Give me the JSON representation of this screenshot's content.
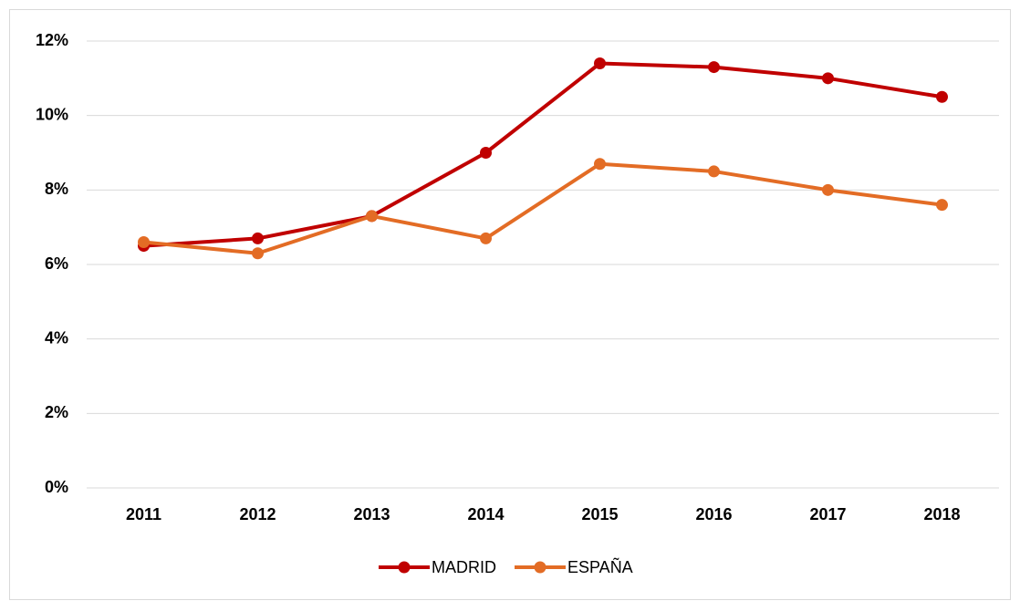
{
  "chart_data": {
    "type": "line",
    "categories": [
      "2011",
      "2012",
      "2013",
      "2014",
      "2015",
      "2016",
      "2017",
      "2018"
    ],
    "series": [
      {
        "name": "MADRID",
        "color": "#c00000",
        "values": [
          6.5,
          6.7,
          7.3,
          9.0,
          11.4,
          11.3,
          11.0,
          10.5
        ]
      },
      {
        "name": "ESPAÑA",
        "color": "#e36c25",
        "values": [
          6.6,
          6.3,
          7.3,
          6.7,
          8.7,
          8.5,
          8.0,
          7.6
        ]
      }
    ],
    "ylim": [
      0,
      12
    ],
    "yticks": [
      {
        "value": 0,
        "label": "0%"
      },
      {
        "value": 2,
        "label": "2%"
      },
      {
        "value": 4,
        "label": "4%"
      },
      {
        "value": 6,
        "label": "6%"
      },
      {
        "value": 8,
        "label": "8%"
      },
      {
        "value": 10,
        "label": "10%"
      },
      {
        "value": 12,
        "label": "12%"
      }
    ],
    "grid": true,
    "legend": "bottom"
  }
}
